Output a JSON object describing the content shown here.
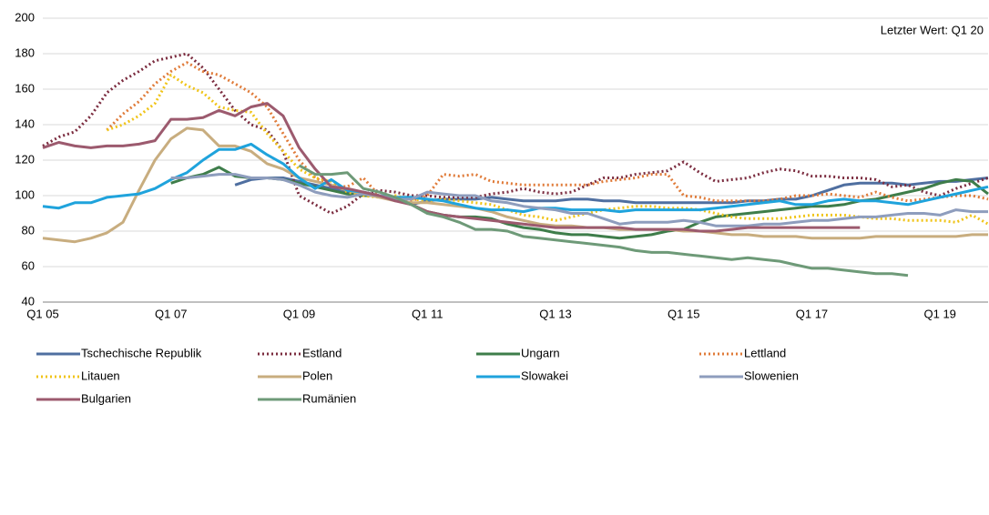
{
  "chart_data": {
    "type": "line",
    "annotation": "Letzter Wert: Q1 20",
    "categories": [
      "Q1 05",
      null,
      null,
      null,
      null,
      null,
      null,
      null,
      "Q1 07",
      null,
      null,
      null,
      null,
      null,
      null,
      null,
      "Q1 09",
      null,
      null,
      null,
      null,
      null,
      null,
      null,
      "Q1 11",
      null,
      null,
      null,
      null,
      null,
      null,
      null,
      "Q1 13",
      null,
      null,
      null,
      null,
      null,
      null,
      null,
      "Q1 15",
      null,
      null,
      null,
      null,
      null,
      null,
      null,
      "Q1 17",
      null,
      null,
      null,
      null,
      null,
      null,
      null,
      "Q1 19",
      null,
      null,
      null
    ],
    "ylim": [
      40,
      200
    ],
    "yticks": [
      40,
      60,
      80,
      100,
      120,
      140,
      160,
      180,
      200
    ],
    "grid": true,
    "series": [
      {
        "name": "Tschechische Republik",
        "color": "#4f6fa0",
        "style": "solid",
        "values": [
          null,
          null,
          null,
          null,
          null,
          null,
          null,
          null,
          null,
          null,
          null,
          null,
          106,
          109,
          110,
          110,
          108,
          106,
          104,
          102,
          101,
          100,
          98,
          95,
          97,
          98,
          98,
          98,
          99,
          98,
          97,
          97,
          97,
          98,
          98,
          97,
          97,
          96,
          96,
          96,
          96,
          96,
          96,
          96,
          97,
          97,
          98,
          98,
          100,
          103,
          106,
          107,
          107,
          107,
          106,
          107,
          108,
          108,
          109,
          110
        ]
      },
      {
        "name": "Estland",
        "color": "#7b2c3f",
        "style": "dotted",
        "values": [
          128,
          133,
          136,
          145,
          158,
          165,
          170,
          176,
          178,
          180,
          172,
          160,
          148,
          140,
          137,
          125,
          100,
          95,
          90,
          94,
          101,
          103,
          102,
          100,
          100,
          99,
          99,
          99,
          101,
          102,
          104,
          102,
          101,
          102,
          106,
          110,
          110,
          112,
          113,
          114,
          119,
          113,
          108,
          109,
          110,
          113,
          115,
          114,
          111,
          111,
          110,
          110,
          109,
          105,
          106,
          102,
          100,
          104,
          107,
          110
        ]
      },
      {
        "name": "Ungarn",
        "color": "#3e7d4a",
        "style": "solid",
        "values": [
          null,
          null,
          null,
          null,
          null,
          null,
          null,
          null,
          107,
          110,
          112,
          116,
          111,
          110,
          110,
          109,
          107,
          105,
          103,
          101,
          100,
          100,
          98,
          95,
          91,
          89,
          88,
          88,
          87,
          84,
          82,
          81,
          79,
          78,
          78,
          77,
          76,
          77,
          78,
          80,
          81,
          85,
          88,
          89,
          90,
          91,
          92,
          93,
          94,
          94,
          95,
          97,
          98,
          100,
          102,
          104,
          107,
          109,
          108,
          101
        ]
      },
      {
        "name": "Lettland",
        "color": "#e07b39",
        "style": "dotted",
        "values": [
          null,
          null,
          null,
          null,
          137,
          146,
          153,
          163,
          170,
          175,
          170,
          168,
          163,
          158,
          150,
          135,
          120,
          110,
          106,
          105,
          110,
          100,
          98,
          97,
          100,
          112,
          111,
          112,
          108,
          107,
          106,
          106,
          106,
          106,
          106,
          108,
          109,
          110,
          112,
          112,
          100,
          99,
          97,
          97,
          97,
          97,
          98,
          100,
          100,
          101,
          100,
          99,
          102,
          99,
          97,
          98,
          99,
          100,
          100,
          98
        ]
      },
      {
        "name": "Litauen",
        "color": "#f0c419",
        "style": "dotted",
        "values": [
          null,
          null,
          null,
          null,
          137,
          140,
          145,
          152,
          168,
          162,
          158,
          150,
          148,
          147,
          135,
          125,
          115,
          110,
          108,
          102,
          100,
          99,
          100,
          98,
          97,
          98,
          97,
          96,
          95,
          92,
          89,
          88,
          86,
          88,
          90,
          92,
          93,
          94,
          94,
          93,
          93,
          92,
          90,
          88,
          87,
          87,
          87,
          88,
          89,
          89,
          89,
          88,
          87,
          87,
          86,
          86,
          86,
          85,
          89,
          84
        ]
      },
      {
        "name": "Polen",
        "color": "#c8ad7f",
        "style": "solid",
        "values": [
          76,
          75,
          74,
          76,
          79,
          85,
          103,
          120,
          132,
          138,
          137,
          128,
          128,
          125,
          118,
          115,
          110,
          108,
          106,
          103,
          101,
          99,
          97,
          96,
          96,
          95,
          94,
          93,
          91,
          88,
          86,
          84,
          83,
          83,
          82,
          82,
          81,
          81,
          81,
          81,
          80,
          80,
          79,
          78,
          78,
          77,
          77,
          77,
          76,
          76,
          76,
          76,
          77,
          77,
          77,
          77,
          77,
          77,
          78,
          78
        ]
      },
      {
        "name": "Slowakei",
        "color": "#1fa3dc",
        "style": "solid",
        "values": [
          94,
          93,
          96,
          96,
          99,
          100,
          101,
          104,
          109,
          113,
          120,
          126,
          126,
          129,
          123,
          118,
          110,
          104,
          109,
          103,
          102,
          100,
          99,
          99,
          98,
          97,
          95,
          93,
          92,
          92,
          91,
          93,
          93,
          92,
          92,
          92,
          91,
          92,
          92,
          92,
          92,
          92,
          93,
          94,
          95,
          96,
          97,
          95,
          95,
          97,
          98,
          97,
          97,
          96,
          95,
          97,
          99,
          101,
          103,
          105
        ]
      },
      {
        "name": "Slowenien",
        "color": "#8e9dbd",
        "style": "solid",
        "values": [
          null,
          null,
          null,
          null,
          null,
          null,
          null,
          null,
          110,
          110,
          111,
          112,
          112,
          110,
          110,
          109,
          106,
          102,
          100,
          99,
          101,
          100,
          98,
          98,
          102,
          101,
          100,
          100,
          97,
          96,
          94,
          93,
          92,
          90,
          90,
          87,
          84,
          85,
          85,
          85,
          86,
          85,
          83,
          83,
          83,
          84,
          84,
          85,
          86,
          86,
          87,
          88,
          88,
          89,
          90,
          90,
          89,
          92,
          91,
          91
        ]
      },
      {
        "name": "Bulgarien",
        "color": "#9c5a6e",
        "style": "solid",
        "values": [
          127,
          130,
          128,
          127,
          128,
          128,
          129,
          131,
          143,
          143,
          144,
          148,
          145,
          150,
          152,
          145,
          127,
          115,
          105,
          104,
          102,
          100,
          97,
          95,
          91,
          89,
          88,
          87,
          86,
          85,
          84,
          83,
          82,
          82,
          82,
          82,
          82,
          81,
          81,
          81,
          81,
          80,
          80,
          81,
          82,
          82,
          82,
          82,
          82,
          82,
          82,
          82,
          null,
          null,
          null,
          null,
          null,
          null,
          null,
          null
        ]
      },
      {
        "name": "Rumänien",
        "color": "#6e9a78",
        "style": "solid",
        "values": [
          null,
          null,
          null,
          null,
          null,
          null,
          null,
          null,
          null,
          null,
          null,
          null,
          null,
          null,
          null,
          null,
          117,
          112,
          112,
          113,
          104,
          102,
          99,
          95,
          90,
          88,
          85,
          81,
          81,
          80,
          77,
          76,
          75,
          74,
          73,
          72,
          71,
          69,
          68,
          68,
          67,
          66,
          65,
          64,
          65,
          64,
          63,
          61,
          59,
          59,
          58,
          57,
          56,
          56,
          55,
          null,
          null,
          null,
          null,
          null
        ]
      }
    ]
  }
}
